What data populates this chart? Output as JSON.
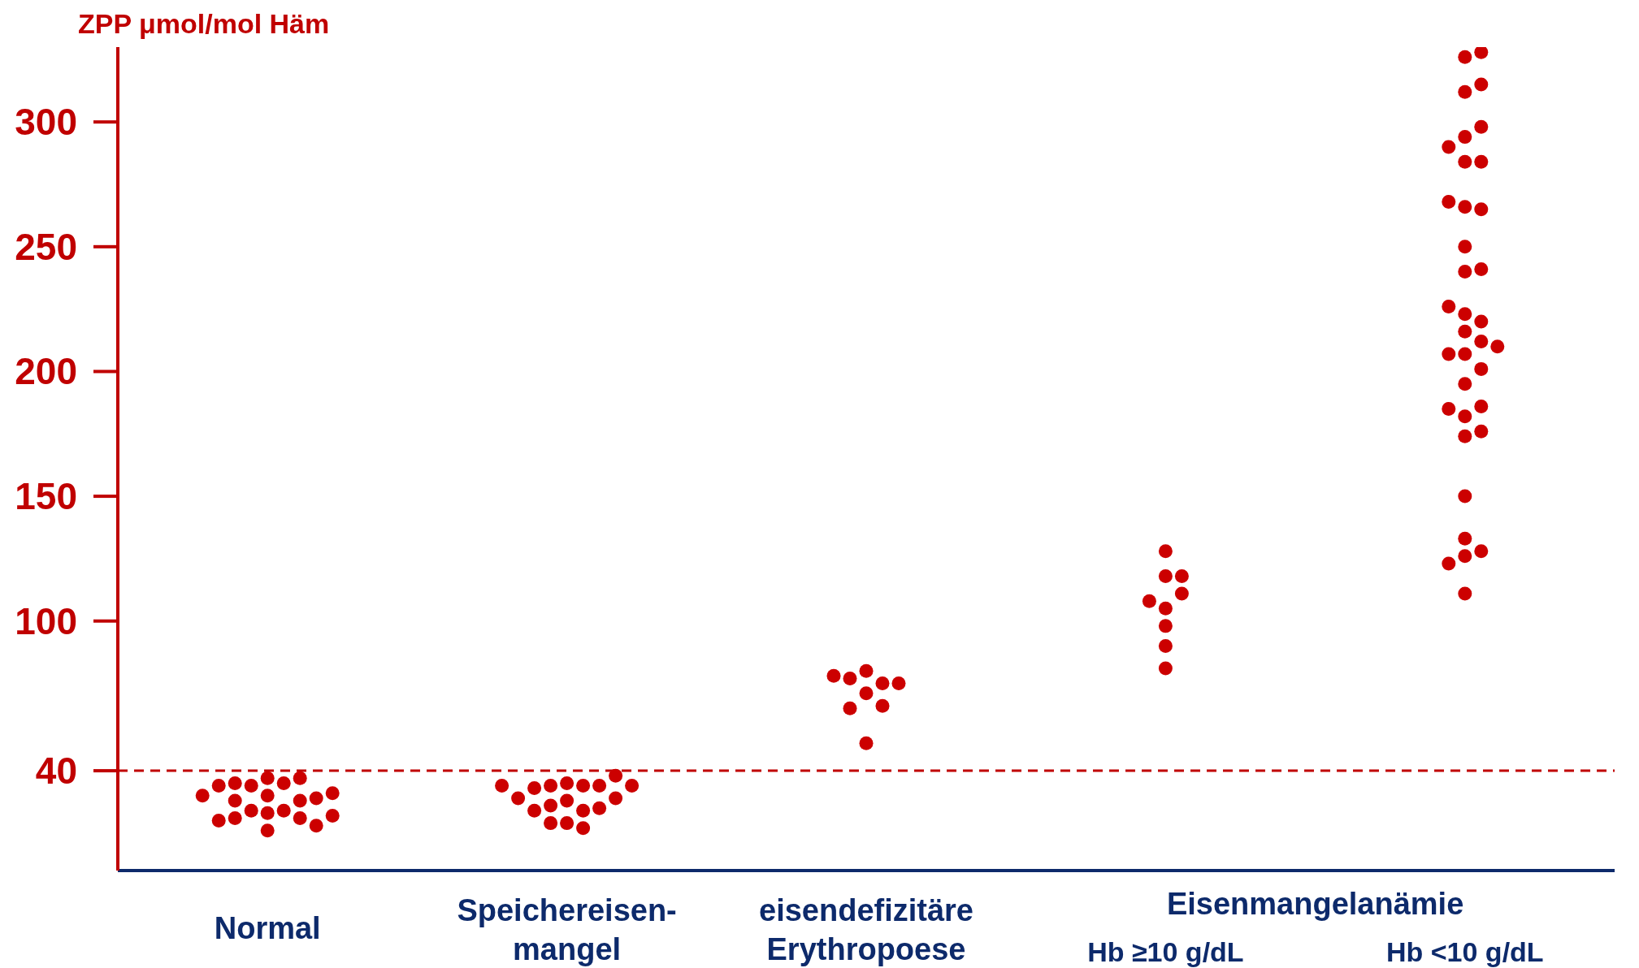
{
  "chart_data": {
    "type": "scatter",
    "ylabel": "ZPP μmol/mol Häm",
    "annotations": [
      "Eisenmangelanämie"
    ],
    "categories": [
      "Normal",
      "Speichereisen-\nmangel",
      "eisendefizitäre\nErythropoese",
      "Hb ≥10 g/dL",
      "Hb <10 g/dL"
    ],
    "ylim": [
      0,
      330
    ],
    "yticks": [
      40,
      100,
      150,
      200,
      250,
      300
    ],
    "grid": false,
    "marker": "circle",
    "ref_lines": [
      {
        "axis": "y",
        "value": 40,
        "color": "#c00000",
        "line_style": "dashed"
      }
    ],
    "series": [
      {
        "color": "#cc0000",
        "x": [
          "Normal",
          "Normal",
          "Normal",
          "Normal",
          "Normal",
          "Normal",
          "Normal",
          "Normal",
          "Normal",
          "Normal",
          "Normal",
          "Normal",
          "Normal",
          "Normal",
          "Normal",
          "Normal",
          "Normal",
          "Normal",
          "Normal",
          "Normal",
          "Normal",
          "Speichereisen-\nmangel",
          "Speichereisen-\nmangel",
          "Speichereisen-\nmangel",
          "Speichereisen-\nmangel",
          "Speichereisen-\nmangel",
          "Speichereisen-\nmangel",
          "Speichereisen-\nmangel",
          "Speichereisen-\nmangel",
          "Speichereisen-\nmangel",
          "Speichereisen-\nmangel",
          "Speichereisen-\nmangel",
          "Speichereisen-\nmangel",
          "Speichereisen-\nmangel",
          "Speichereisen-\nmangel",
          "Speichereisen-\nmangel",
          "Speichereisen-\nmangel",
          "Speichereisen-\nmangel",
          "Speichereisen-\nmangel",
          "eisendefizitäre\nErythropoese",
          "eisendefizitäre\nErythropoese",
          "eisendefizitäre\nErythropoese",
          "eisendefizitäre\nErythropoese",
          "eisendefizitäre\nErythropoese",
          "eisendefizitäre\nErythropoese",
          "eisendefizitäre\nErythropoese",
          "eisendefizitäre\nErythropoese",
          "eisendefizitäre\nErythropoese",
          "Hb ≥10 g/dL",
          "Hb ≥10 g/dL",
          "Hb ≥10 g/dL",
          "Hb ≥10 g/dL",
          "Hb ≥10 g/dL",
          "Hb ≥10 g/dL",
          "Hb ≥10 g/dL",
          "Hb ≥10 g/dL",
          "Hb ≥10 g/dL",
          "Hb <10 g/dL",
          "Hb <10 g/dL",
          "Hb <10 g/dL",
          "Hb <10 g/dL",
          "Hb <10 g/dL",
          "Hb <10 g/dL",
          "Hb <10 g/dL",
          "Hb <10 g/dL",
          "Hb <10 g/dL",
          "Hb <10 g/dL",
          "Hb <10 g/dL",
          "Hb <10 g/dL",
          "Hb <10 g/dL",
          "Hb <10 g/dL",
          "Hb <10 g/dL",
          "Hb <10 g/dL",
          "Hb <10 g/dL",
          "Hb <10 g/dL",
          "Hb <10 g/dL",
          "Hb <10 g/dL",
          "Hb <10 g/dL",
          "Hb <10 g/dL",
          "Hb <10 g/dL",
          "Hb <10 g/dL",
          "Hb <10 g/dL",
          "Hb <10 g/dL",
          "Hb <10 g/dL",
          "Hb <10 g/dL",
          "Hb <10 g/dL",
          "Hb <10 g/dL",
          "Hb <10 g/dL",
          "Hb <10 g/dL",
          "Hb <10 g/dL",
          "Hb <10 g/dL",
          "Hb <10 g/dL",
          "Hb <10 g/dL"
        ],
        "values": [
          30,
          24,
          35,
          24,
          37,
          16,
          21,
          34,
          28,
          21,
          37,
          28,
          35,
          18,
          29,
          23,
          34,
          31,
          20,
          30,
          22,
          28,
          34,
          19,
          34,
          24,
          34,
          26,
          33,
          25,
          35,
          17,
          29,
          19,
          38,
          29,
          24,
          34,
          34,
          71,
          75,
          66,
          80,
          51,
          77,
          65,
          75,
          78,
          118,
          105,
          90,
          128,
          111,
          81,
          98,
          108,
          118,
          326,
          328,
          312,
          315,
          294,
          298,
          284,
          284,
          290,
          266,
          265,
          268,
          250,
          240,
          241,
          216,
          220,
          223,
          226,
          212,
          207,
          207,
          210,
          201,
          195,
          182,
          186,
          185,
          174,
          176,
          150,
          133,
          126,
          128,
          123,
          111
        ]
      }
    ]
  }
}
